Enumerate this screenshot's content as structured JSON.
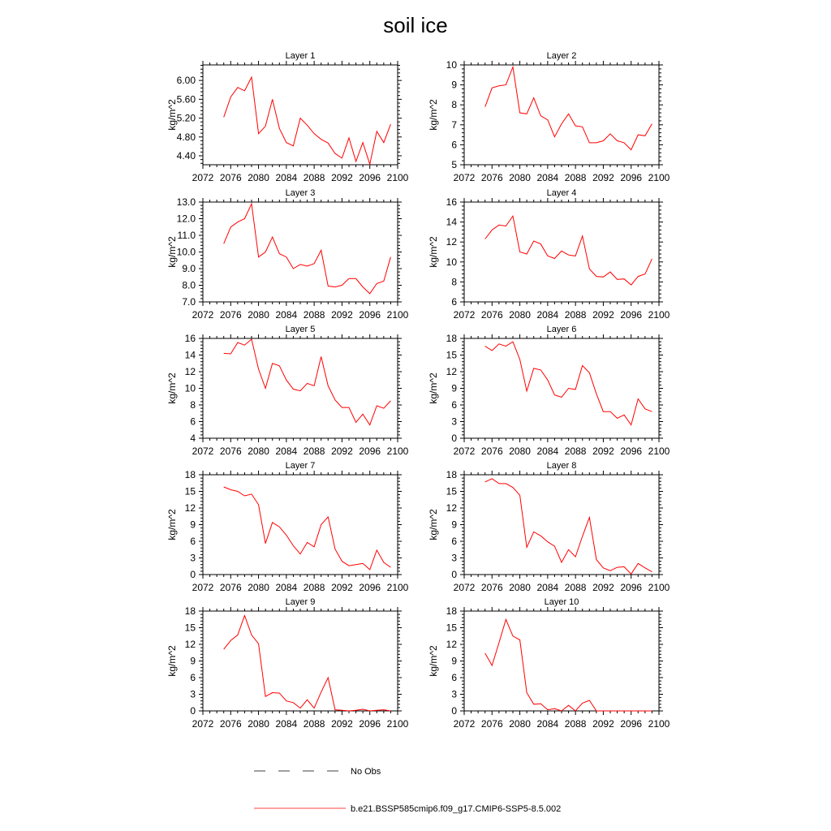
{
  "chart_data": {
    "type": "line",
    "title": "soil ice",
    "x": [
      2075,
      2076,
      2077,
      2078,
      2079,
      2080,
      2081,
      2082,
      2083,
      2084,
      2085,
      2086,
      2087,
      2088,
      2089,
      2090,
      2091,
      2092,
      2093,
      2094,
      2095,
      2096,
      2097,
      2098,
      2099
    ],
    "xlim": [
      2072,
      2100
    ],
    "xticks": [
      "2072",
      "2076",
      "2080",
      "2084",
      "2088",
      "2092",
      "2096",
      "2100"
    ],
    "ylabel": "kg/m^2",
    "line_color": "#ff0000",
    "panels": [
      {
        "title": "Layer 1",
        "ylim": [
          4.21,
          6.33
        ],
        "yticks": [
          "4.40",
          "4.80",
          "5.20",
          "5.60",
          "6.00"
        ],
        "values": [
          5.22,
          5.65,
          5.85,
          5.78,
          6.07,
          4.87,
          5.03,
          5.6,
          4.98,
          4.68,
          4.61,
          5.2,
          5.05,
          4.87,
          4.75,
          4.67,
          4.45,
          4.35,
          4.78,
          4.28,
          4.68,
          4.22,
          4.92,
          4.68,
          5.07
        ]
      },
      {
        "title": "Layer 2",
        "ylim": [
          5,
          10
        ],
        "yticks": [
          "5",
          "6",
          "7",
          "8",
          "9",
          "10"
        ],
        "values": [
          7.9,
          8.85,
          8.95,
          9.0,
          9.9,
          7.6,
          7.55,
          8.35,
          7.45,
          7.25,
          6.4,
          7.05,
          7.55,
          6.95,
          6.9,
          6.1,
          6.1,
          6.2,
          6.55,
          6.2,
          6.1,
          5.75,
          6.5,
          6.45,
          7.05
        ]
      },
      {
        "title": "Layer 3",
        "ylim": [
          7,
          13
        ],
        "yticks": [
          "7.0",
          "8.0",
          "9.0",
          "10.0",
          "11.0",
          "12.0",
          "13.0"
        ],
        "values": [
          10.5,
          11.5,
          11.8,
          12.0,
          12.9,
          9.7,
          10.0,
          10.9,
          9.9,
          9.7,
          9.0,
          9.25,
          9.15,
          9.3,
          10.1,
          7.95,
          7.9,
          8.0,
          8.4,
          8.4,
          7.9,
          7.5,
          8.1,
          8.25,
          9.7
        ]
      },
      {
        "title": "Layer 4",
        "ylim": [
          6,
          16
        ],
        "yticks": [
          "6",
          "8",
          "10",
          "12",
          "14",
          "16"
        ],
        "values": [
          12.3,
          13.2,
          13.7,
          13.6,
          14.6,
          11.0,
          10.8,
          12.1,
          11.8,
          10.6,
          10.35,
          11.1,
          10.7,
          10.6,
          12.6,
          9.3,
          8.55,
          8.5,
          9.0,
          8.25,
          8.3,
          7.7,
          8.55,
          8.8,
          10.3
        ]
      },
      {
        "title": "Layer 5",
        "ylim": [
          4,
          16
        ],
        "yticks": [
          "4",
          "6",
          "8",
          "10",
          "12",
          "14",
          "16"
        ],
        "values": [
          14.2,
          14.15,
          15.5,
          15.2,
          15.9,
          12.3,
          10.0,
          13.0,
          12.7,
          11.0,
          9.9,
          9.7,
          10.6,
          10.3,
          13.8,
          10.3,
          8.6,
          7.7,
          7.7,
          5.9,
          6.9,
          5.6,
          7.9,
          7.6,
          8.5
        ]
      },
      {
        "title": "Layer 6",
        "ylim": [
          0,
          18
        ],
        "yticks": [
          "0",
          "3",
          "6",
          "9",
          "12",
          "15",
          "18"
        ],
        "values": [
          16.6,
          15.8,
          17.0,
          16.6,
          17.4,
          14.2,
          8.5,
          12.6,
          12.3,
          10.5,
          7.8,
          7.4,
          9.0,
          8.8,
          13.1,
          11.8,
          8.0,
          4.8,
          4.8,
          3.6,
          4.2,
          2.4,
          7.1,
          5.3,
          4.8
        ]
      },
      {
        "title": "Layer 7",
        "ylim": [
          0,
          18
        ],
        "yticks": [
          "0",
          "3",
          "6",
          "9",
          "12",
          "15",
          "18"
        ],
        "values": [
          15.8,
          15.3,
          15.0,
          14.2,
          14.5,
          12.6,
          5.6,
          9.4,
          8.6,
          7.1,
          5.2,
          3.7,
          5.8,
          5.0,
          9.0,
          10.4,
          4.6,
          2.4,
          1.6,
          1.8,
          2.0,
          0.9,
          4.4,
          2.2,
          1.3
        ]
      },
      {
        "title": "Layer 8",
        "ylim": [
          0,
          18
        ],
        "yticks": [
          "0",
          "3",
          "6",
          "9",
          "12",
          "15",
          "18"
        ],
        "values": [
          16.7,
          17.3,
          16.4,
          16.4,
          15.7,
          14.3,
          4.9,
          7.7,
          7.0,
          5.9,
          5.1,
          2.2,
          4.5,
          3.2,
          6.9,
          10.3,
          2.7,
          1.2,
          0.7,
          1.3,
          1.4,
          0.1,
          2.0,
          1.2,
          0.5
        ]
      },
      {
        "title": "Layer 9",
        "ylim": [
          0,
          18
        ],
        "yticks": [
          "0",
          "3",
          "6",
          "9",
          "12",
          "15",
          "18"
        ],
        "values": [
          11.1,
          12.7,
          13.7,
          17.2,
          13.7,
          12.1,
          2.6,
          3.3,
          3.2,
          1.8,
          1.5,
          0.5,
          2.0,
          0.5,
          3.4,
          6.0,
          0.2,
          0.1,
          0.0,
          0.1,
          0.3,
          0.0,
          0.1,
          0.2,
          0.0
        ]
      },
      {
        "title": "Layer 10",
        "ylim": [
          0,
          18
        ],
        "yticks": [
          "0",
          "3",
          "6",
          "9",
          "12",
          "15",
          "18"
        ],
        "values": [
          10.4,
          8.2,
          12.3,
          16.5,
          13.5,
          12.8,
          3.3,
          1.2,
          1.3,
          0.2,
          0.4,
          0.0,
          1.0,
          0.0,
          1.4,
          1.9,
          0.0,
          0.0,
          0.0,
          0.0,
          0.0,
          0.0,
          0.0,
          0.0,
          0.0
        ]
      }
    ],
    "legend": [
      {
        "label": "No Obs",
        "style": "dashed",
        "color": "#000000"
      },
      {
        "label": "b.e21.BSSP585cmip6.f09_g17.CMIP6-SSP5-8.5.002",
        "style": "solid",
        "color": "#ff0000"
      }
    ],
    "legend_position": "bottom-center"
  }
}
